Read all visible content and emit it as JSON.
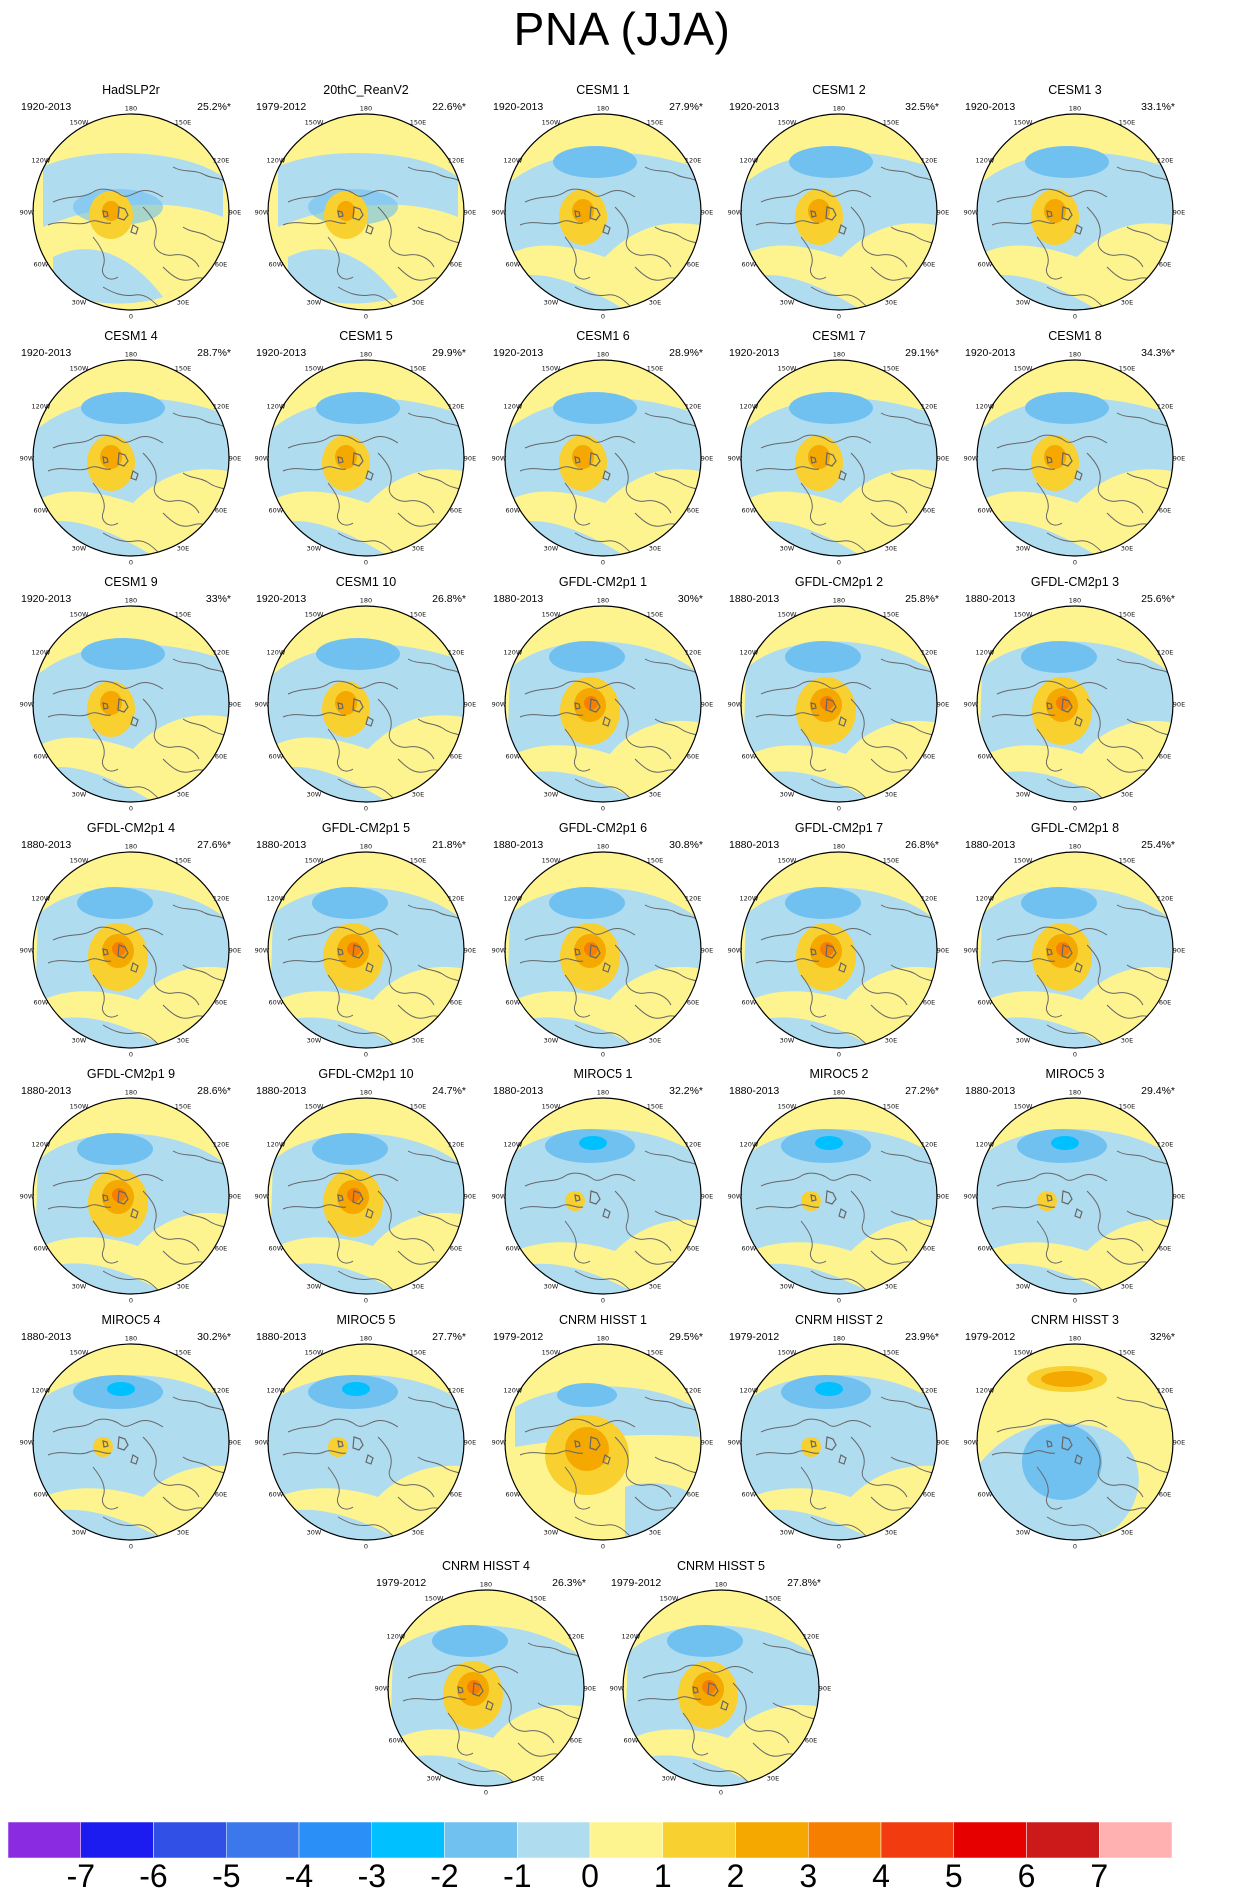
{
  "title": "PNA (JJA)",
  "lon_labels": [
    "180",
    "150E",
    "120E",
    "90E",
    "60E",
    "30E",
    "0",
    "30W",
    "60W",
    "90W",
    "120W",
    "150W"
  ],
  "panels": [
    {
      "name": "HadSLP2r",
      "years": "1920-2013",
      "pct": "25.2%*",
      "pattern": "A"
    },
    {
      "name": "20thC_ReanV2",
      "years": "1979-2012",
      "pct": "22.6%*",
      "pattern": "A"
    },
    {
      "name": "CESM1 1",
      "years": "1920-2013",
      "pct": "27.9%*",
      "pattern": "B"
    },
    {
      "name": "CESM1 2",
      "years": "1920-2013",
      "pct": "32.5%*",
      "pattern": "B"
    },
    {
      "name": "CESM1 3",
      "years": "1920-2013",
      "pct": "33.1%*",
      "pattern": "B"
    },
    {
      "name": "CESM1 4",
      "years": "1920-2013",
      "pct": "28.7%*",
      "pattern": "B"
    },
    {
      "name": "CESM1 5",
      "years": "1920-2013",
      "pct": "29.9%*",
      "pattern": "B"
    },
    {
      "name": "CESM1 6",
      "years": "1920-2013",
      "pct": "28.9%*",
      "pattern": "B"
    },
    {
      "name": "CESM1 7",
      "years": "1920-2013",
      "pct": "29.1%*",
      "pattern": "B"
    },
    {
      "name": "CESM1 8",
      "years": "1920-2013",
      "pct": "34.3%*",
      "pattern": "B"
    },
    {
      "name": "CESM1 9",
      "years": "1920-2013",
      "pct": "33%*",
      "pattern": "B"
    },
    {
      "name": "CESM1 10",
      "years": "1920-2013",
      "pct": "26.8%*",
      "pattern": "B"
    },
    {
      "name": "GFDL-CM2p1 1",
      "years": "1880-2013",
      "pct": "30%*",
      "pattern": "C"
    },
    {
      "name": "GFDL-CM2p1 2",
      "years": "1880-2013",
      "pct": "25.8%*",
      "pattern": "C"
    },
    {
      "name": "GFDL-CM2p1 3",
      "years": "1880-2013",
      "pct": "25.6%*",
      "pattern": "C"
    },
    {
      "name": "GFDL-CM2p1 4",
      "years": "1880-2013",
      "pct": "27.6%*",
      "pattern": "C"
    },
    {
      "name": "GFDL-CM2p1 5",
      "years": "1880-2013",
      "pct": "21.8%*",
      "pattern": "C"
    },
    {
      "name": "GFDL-CM2p1 6",
      "years": "1880-2013",
      "pct": "30.8%*",
      "pattern": "C"
    },
    {
      "name": "GFDL-CM2p1 7",
      "years": "1880-2013",
      "pct": "26.8%*",
      "pattern": "C"
    },
    {
      "name": "GFDL-CM2p1 8",
      "years": "1880-2013",
      "pct": "25.4%*",
      "pattern": "C"
    },
    {
      "name": "GFDL-CM2p1 9",
      "years": "1880-2013",
      "pct": "28.6%*",
      "pattern": "C"
    },
    {
      "name": "GFDL-CM2p1 10",
      "years": "1880-2013",
      "pct": "24.7%*",
      "pattern": "C"
    },
    {
      "name": "MIROC5 1",
      "years": "1880-2013",
      "pct": "32.2%*",
      "pattern": "D"
    },
    {
      "name": "MIROC5 2",
      "years": "1880-2013",
      "pct": "27.2%*",
      "pattern": "D"
    },
    {
      "name": "MIROC5 3",
      "years": "1880-2013",
      "pct": "29.4%*",
      "pattern": "D"
    },
    {
      "name": "MIROC5 4",
      "years": "1880-2013",
      "pct": "30.2%*",
      "pattern": "D"
    },
    {
      "name": "MIROC5 5",
      "years": "1880-2013",
      "pct": "27.7%*",
      "pattern": "D"
    },
    {
      "name": "CNRM HISST 1",
      "years": "1979-2012",
      "pct": "29.5%*",
      "pattern": "E"
    },
    {
      "name": "CNRM HISST 2",
      "years": "1979-2012",
      "pct": "23.9%*",
      "pattern": "D"
    },
    {
      "name": "CNRM HISST 3",
      "years": "1979-2012",
      "pct": "32%*",
      "pattern": "F"
    },
    {
      "name": "CNRM HISST 4",
      "years": "1979-2012",
      "pct": "26.3%*",
      "pattern": "C"
    },
    {
      "name": "CNRM HISST 5",
      "years": "1979-2012",
      "pct": "27.8%*",
      "pattern": "C"
    }
  ],
  "colorbar": {
    "colors": [
      "#8a2be2",
      "#1c1cf0",
      "#3050e6",
      "#3a78ec",
      "#2a90f8",
      "#00c0ff",
      "#70c0f0",
      "#b0dcf0",
      "#fdf490",
      "#f8d030",
      "#f5a800",
      "#f77f00",
      "#f23c10",
      "#e60000",
      "#cc1a1a",
      "#ffb0b0"
    ],
    "labels": [
      "-7",
      "-6",
      "-5",
      "-4",
      "-3",
      "-2",
      "-1",
      "0",
      "1",
      "2",
      "3",
      "4",
      "5",
      "6",
      "7"
    ]
  },
  "map_colors": {
    "ocean_pos": "#fdf490",
    "ocean_neg": "#b0dcf0",
    "neg2": "#70c0f0",
    "neg3": "#2a90f8",
    "neg4": "#00c0ff",
    "pos2": "#f8d030",
    "pos3": "#f5a800",
    "pos4": "#f77f00",
    "coast": "#666666"
  }
}
